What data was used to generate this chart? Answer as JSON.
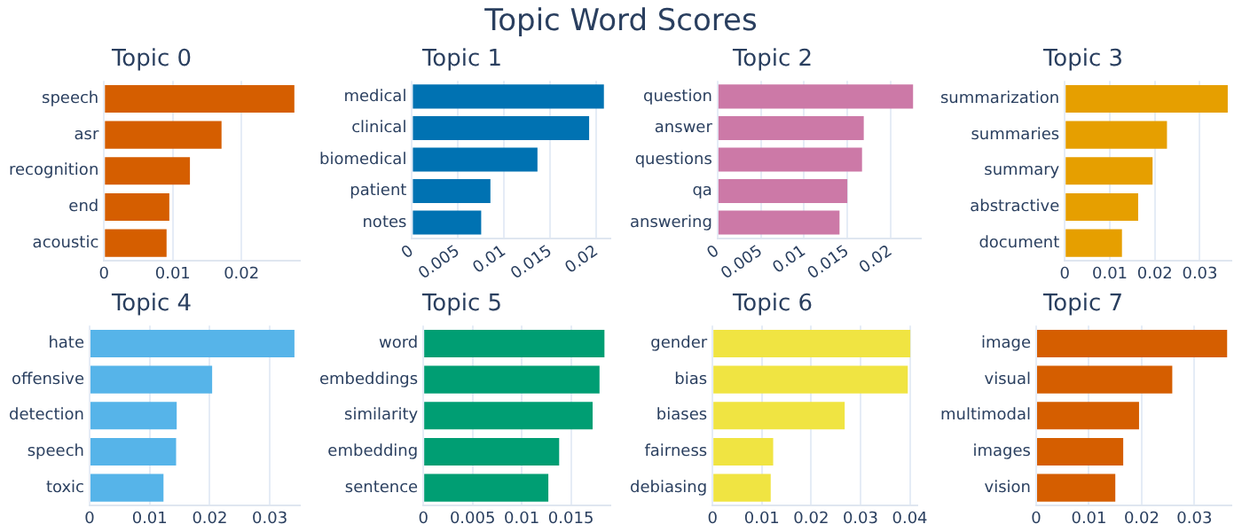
{
  "chart_data": [
    {
      "type": "bar",
      "orientation": "horizontal",
      "title": "Topic 0",
      "annotations": [
        "Topic Word Scores"
      ],
      "categories": [
        "speech",
        "asr",
        "recognition",
        "end",
        "acoustic"
      ],
      "values": [
        0.0277,
        0.0171,
        0.0125,
        0.0095,
        0.0091
      ],
      "color": "#d55e00",
      "xlim": [
        0,
        0.0285
      ],
      "xticks": [
        0,
        0.01,
        0.02
      ],
      "grid": "x"
    },
    {
      "type": "bar",
      "orientation": "horizontal",
      "title": "Topic 1",
      "categories": [
        "medical",
        "clinical",
        "biomedical",
        "patient",
        "notes"
      ],
      "values": [
        0.0208,
        0.0192,
        0.0136,
        0.0085,
        0.0075
      ],
      "color": "#0072b2",
      "xlim": [
        0,
        0.0215
      ],
      "xticks": [
        0,
        0.005,
        0.01,
        0.015,
        0.02
      ],
      "grid": "x"
    },
    {
      "type": "bar",
      "orientation": "horizontal",
      "title": "Topic 2",
      "categories": [
        "question",
        "answer",
        "questions",
        "qa",
        "answering"
      ],
      "values": [
        0.0226,
        0.0169,
        0.0167,
        0.015,
        0.0141
      ],
      "color": "#cc79a7",
      "xlim": [
        0,
        0.0235
      ],
      "xticks": [
        0,
        0.005,
        0.01,
        0.015,
        0.02
      ],
      "grid": "x"
    },
    {
      "type": "bar",
      "orientation": "horizontal",
      "title": "Topic 3",
      "categories": [
        "summarization",
        "summaries",
        "summary",
        "abstractive",
        "document"
      ],
      "values": [
        0.0362,
        0.0227,
        0.0195,
        0.0163,
        0.0127
      ],
      "color": "#e69f00",
      "xlim": [
        0,
        0.037
      ],
      "xticks": [
        0,
        0.01,
        0.02,
        0.03
      ],
      "grid": "x"
    },
    {
      "type": "bar",
      "orientation": "horizontal",
      "title": "Topic 4",
      "categories": [
        "hate",
        "offensive",
        "detection",
        "speech",
        "toxic"
      ],
      "values": [
        0.0341,
        0.0204,
        0.0145,
        0.0144,
        0.0123
      ],
      "color": "#56b4e9",
      "xlim": [
        0,
        0.035
      ],
      "xticks": [
        0,
        0.01,
        0.02,
        0.03
      ],
      "grid": "x"
    },
    {
      "type": "bar",
      "orientation": "horizontal",
      "title": "Topic 5",
      "categories": [
        "word",
        "embeddings",
        "similarity",
        "embedding",
        "sentence"
      ],
      "values": [
        0.0184,
        0.0179,
        0.0172,
        0.0138,
        0.0127
      ],
      "color": "#009e73",
      "xlim": [
        0,
        0.019
      ],
      "xticks": [
        0,
        0.005,
        0.01,
        0.015
      ],
      "grid": "x"
    },
    {
      "type": "bar",
      "orientation": "horizontal",
      "title": "Topic 6",
      "categories": [
        "gender",
        "bias",
        "biases",
        "fairness",
        "debiasing"
      ],
      "values": [
        0.0401,
        0.0396,
        0.0268,
        0.0123,
        0.0118
      ],
      "color": "#f0e442",
      "xlim": [
        0,
        0.0415
      ],
      "xticks": [
        0,
        0.01,
        0.02,
        0.03,
        0.04
      ],
      "grid": "x"
    },
    {
      "type": "bar",
      "orientation": "horizontal",
      "title": "Topic 7",
      "categories": [
        "image",
        "visual",
        "multimodal",
        "images",
        "vision"
      ],
      "values": [
        0.0362,
        0.0258,
        0.0195,
        0.0165,
        0.015
      ],
      "color": "#d55e00",
      "xlim": [
        0,
        0.037
      ],
      "xticks": [
        0,
        0.01,
        0.02,
        0.03
      ],
      "grid": "x"
    }
  ]
}
